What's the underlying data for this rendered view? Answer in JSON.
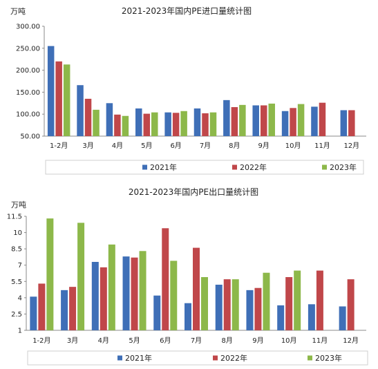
{
  "colors": {
    "y2021": "#3f6fb7",
    "y2022": "#c0474a",
    "y2023": "#8db84a"
  },
  "chart_data": [
    {
      "type": "bar",
      "title": "2021-2023年国内PE进口量统计图",
      "ylabel": "万吨",
      "xlabel": "",
      "ylim": [
        50,
        300
      ],
      "yticks": [
        "50.00",
        "100.00",
        "150.00",
        "200.00",
        "250.00",
        "300.00"
      ],
      "ytick_values": [
        50,
        100,
        150,
        200,
        250,
        300
      ],
      "categories": [
        "1-2月",
        "3月",
        "4月",
        "5月",
        "6月",
        "7月",
        "8月",
        "9月",
        "10月",
        "11月",
        "12月"
      ],
      "series": [
        {
          "name": "2021年",
          "values": [
            255,
            166,
            125,
            113,
            104,
            113,
            132,
            120,
            107,
            117,
            109
          ]
        },
        {
          "name": "2022年",
          "values": [
            220,
            135,
            99,
            101,
            103,
            102,
            116,
            120,
            114,
            126,
            109
          ]
        },
        {
          "name": "2023年",
          "values": [
            213,
            110,
            96,
            104,
            107,
            104,
            121,
            124,
            123,
            null,
            null
          ]
        }
      ],
      "legend": "bottom"
    },
    {
      "type": "bar",
      "title": "2021-2023年国内PE出口量统计图",
      "ylabel": "万吨",
      "xlabel": "",
      "ylim": [
        1,
        11.5
      ],
      "yticks": [
        "1",
        "2.5",
        "4",
        "5.5",
        "7",
        "8.5",
        "10",
        "11.5"
      ],
      "ytick_values": [
        1,
        2.5,
        4,
        5.5,
        7,
        8.5,
        10,
        11.5
      ],
      "categories": [
        "1-2月",
        "3月",
        "4月",
        "5月",
        "6月",
        "7月",
        "8月",
        "9月",
        "10月",
        "11月",
        "12月"
      ],
      "series": [
        {
          "name": "2021年",
          "values": [
            4.1,
            4.7,
            7.3,
            7.8,
            4.2,
            3.5,
            5.2,
            4.7,
            3.3,
            3.4,
            3.2
          ]
        },
        {
          "name": "2022年",
          "values": [
            5.3,
            5.0,
            6.8,
            7.7,
            10.4,
            8.6,
            5.7,
            4.9,
            5.9,
            6.5,
            5.7
          ]
        },
        {
          "name": "2023年",
          "values": [
            11.3,
            10.9,
            8.9,
            8.3,
            7.4,
            5.9,
            5.7,
            6.3,
            6.5,
            null,
            null
          ]
        }
      ],
      "legend": "bottom"
    }
  ]
}
